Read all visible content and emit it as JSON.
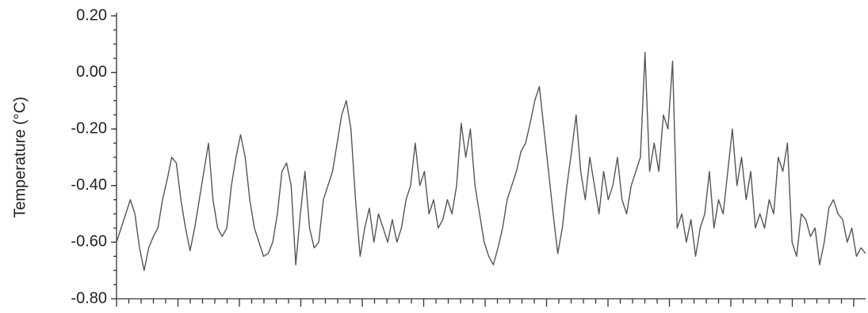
{
  "chart_data": {
    "type": "line",
    "y_label": "Temperature (°C)",
    "color": "#555555",
    "ylim": [
      -0.8,
      0.2
    ],
    "yticks": [
      {
        "value": -0.8,
        "label": "-0.80"
      },
      {
        "value": -0.6,
        "label": "-0.60"
      },
      {
        "value": -0.4,
        "label": "-0.40"
      },
      {
        "value": -0.2,
        "label": "-0.20"
      },
      {
        "value": 0,
        "label": "0.00"
      },
      {
        "value": 0.2,
        "label": "0.20"
      }
    ],
    "values": [
      -0.6,
      -0.55,
      -0.5,
      -0.45,
      -0.5,
      -0.62,
      -0.7,
      -0.62,
      -0.58,
      -0.55,
      -0.45,
      -0.38,
      -0.3,
      -0.32,
      -0.45,
      -0.55,
      -0.63,
      -0.55,
      -0.45,
      -0.35,
      -0.25,
      -0.45,
      -0.55,
      -0.58,
      -0.55,
      -0.4,
      -0.3,
      -0.22,
      -0.3,
      -0.45,
      -0.55,
      -0.6,
      -0.65,
      -0.64,
      -0.6,
      -0.5,
      -0.35,
      -0.32,
      -0.4,
      -0.68,
      -0.5,
      -0.35,
      -0.55,
      -0.62,
      -0.6,
      -0.45,
      -0.4,
      -0.35,
      -0.25,
      -0.15,
      -0.1,
      -0.2,
      -0.45,
      -0.65,
      -0.55,
      -0.48,
      -0.6,
      -0.5,
      -0.55,
      -0.6,
      -0.52,
      -0.6,
      -0.55,
      -0.45,
      -0.4,
      -0.25,
      -0.4,
      -0.35,
      -0.5,
      -0.45,
      -0.55,
      -0.52,
      -0.45,
      -0.5,
      -0.4,
      -0.18,
      -0.3,
      -0.2,
      -0.4,
      -0.5,
      -0.6,
      -0.65,
      -0.68,
      -0.62,
      -0.55,
      -0.45,
      -0.4,
      -0.35,
      -0.28,
      -0.25,
      -0.18,
      -0.1,
      -0.05,
      -0.2,
      -0.35,
      -0.5,
      -0.64,
      -0.55,
      -0.4,
      -0.28,
      -0.15,
      -0.35,
      -0.45,
      -0.3,
      -0.4,
      -0.5,
      -0.35,
      -0.45,
      -0.4,
      -0.3,
      -0.45,
      -0.5,
      -0.4,
      -0.35,
      -0.3,
      0.07,
      -0.35,
      -0.25,
      -0.35,
      -0.15,
      -0.2,
      0.04,
      -0.55,
      -0.5,
      -0.6,
      -0.52,
      -0.65,
      -0.55,
      -0.5,
      -0.35,
      -0.55,
      -0.45,
      -0.5,
      -0.35,
      -0.2,
      -0.4,
      -0.3,
      -0.45,
      -0.35,
      -0.55,
      -0.5,
      -0.55,
      -0.45,
      -0.5,
      -0.3,
      -0.35,
      -0.25,
      -0.6,
      -0.65,
      -0.5,
      -0.52,
      -0.58,
      -0.55,
      -0.68,
      -0.6,
      -0.48,
      -0.45,
      -0.5,
      -0.52,
      -0.6,
      -0.55,
      -0.65,
      -0.62,
      -0.64
    ]
  }
}
